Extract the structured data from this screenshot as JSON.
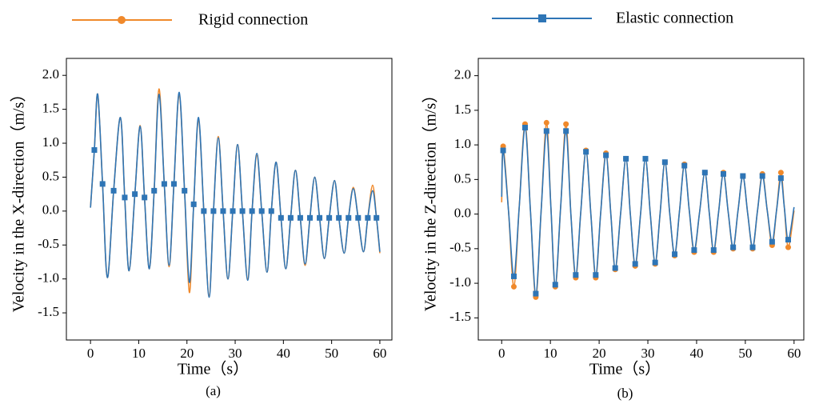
{
  "chart_data": [
    {
      "type": "line",
      "caption": "(a)",
      "xlabel": "Time（s）",
      "ylabel": "Velocity in the X-direction（m/s）",
      "xlim": [
        -5,
        62.5
      ],
      "ylim": [
        -1.9,
        2.25
      ],
      "xticks": [
        0,
        10,
        20,
        30,
        40,
        50,
        60
      ],
      "yticks": [
        {
          "value": -1.5,
          "label": "-1.5"
        },
        {
          "value": -1,
          "label": "-1.0"
        },
        -0.5,
        {
          "value": 0,
          "label": "0.0"
        },
        0.5,
        {
          "value": 1,
          "label": "1.0"
        },
        1.5,
        {
          "value": 2,
          "label": "2.0"
        }
      ],
      "x": [
        0,
        0.8,
        1.5,
        2.5,
        3.5,
        4.8,
        6.2,
        7.1,
        8.0,
        9.2,
        10.3,
        11.2,
        12.2,
        13.2,
        14.2,
        15.3,
        16.3,
        17.3,
        18.4,
        19.5,
        20.5,
        21.4,
        22.4,
        23.5,
        24.6,
        25.5,
        26.5,
        27.5,
        28.5,
        29.5,
        30.5,
        31.5,
        32.6,
        33.5,
        34.5,
        35.5,
        36.6,
        37.5,
        38.5,
        39.5,
        40.5,
        41.5,
        42.5,
        43.5,
        44.5,
        45.5,
        46.5,
        47.5,
        48.5,
        49.5,
        50.6,
        51.5,
        52.6,
        53.5,
        54.5,
        55.5,
        56.6,
        57.5,
        58.5,
        59.3,
        60
      ],
      "series": [
        {
          "name": "Rigid connection",
          "color": "#f0892b",
          "marker": "circle",
          "values": [
            0.05,
            0.9,
            1.72,
            0.4,
            -0.98,
            0.3,
            1.38,
            0.2,
            -0.88,
            0.25,
            1.26,
            0.2,
            -0.85,
            0.3,
            1.8,
            0.4,
            -0.82,
            0.4,
            1.72,
            0.3,
            -1.2,
            0.1,
            1.35,
            0.0,
            -1.25,
            0.0,
            1.1,
            0.0,
            -1.0,
            0.0,
            0.98,
            0.0,
            -1.0,
            0.0,
            0.82,
            0.0,
            -0.9,
            0.0,
            0.72,
            -0.1,
            -0.85,
            -0.1,
            0.6,
            -0.1,
            -0.8,
            -0.1,
            0.5,
            -0.1,
            -0.7,
            -0.1,
            0.45,
            -0.1,
            -0.62,
            -0.1,
            0.35,
            -0.1,
            -0.6,
            -0.1,
            0.38,
            -0.1,
            -0.62
          ]
        },
        {
          "name": "Elastic connection",
          "color": "#2e75b6",
          "marker": "square",
          "values": [
            0.05,
            0.9,
            1.72,
            0.4,
            -0.98,
            0.3,
            1.38,
            0.2,
            -0.88,
            0.25,
            1.25,
            0.2,
            -0.85,
            0.3,
            1.72,
            0.4,
            -0.8,
            0.4,
            1.75,
            0.3,
            -1.05,
            0.1,
            1.38,
            0.0,
            -1.27,
            0.0,
            1.08,
            0.0,
            -1.0,
            0.0,
            0.98,
            0.0,
            -1.02,
            0.0,
            0.85,
            0.0,
            -0.9,
            0.0,
            0.72,
            -0.1,
            -0.85,
            -0.1,
            0.6,
            -0.1,
            -0.78,
            -0.1,
            0.5,
            -0.1,
            -0.7,
            -0.1,
            0.45,
            -0.1,
            -0.62,
            -0.1,
            0.33,
            -0.1,
            -0.6,
            -0.1,
            0.3,
            -0.1,
            -0.6
          ]
        }
      ]
    },
    {
      "type": "line",
      "caption": "(b)",
      "xlabel": "Time（s）",
      "ylabel": "Velocity in the Z-direction（m/s）",
      "xlim": [
        -4.8,
        62
      ],
      "ylim": [
        -1.82,
        2.25
      ],
      "xticks": [
        0,
        10,
        20,
        30,
        40,
        50,
        60
      ],
      "yticks": [
        {
          "value": -1.5,
          "label": "-1.5"
        },
        {
          "value": -1,
          "label": "-1.0"
        },
        -0.5,
        {
          "value": 0,
          "label": "0.0"
        },
        0.5,
        {
          "value": 1,
          "label": "1.0"
        },
        1.5,
        {
          "value": 2,
          "label": "2.0"
        }
      ],
      "x": [
        0,
        0.3,
        1.4,
        2.5,
        3.6,
        4.8,
        5.9,
        7.0,
        8.1,
        9.2,
        10.1,
        11.0,
        12.1,
        13.2,
        14.2,
        15.2,
        16.2,
        17.3,
        18.3,
        19.3,
        20.3,
        21.4,
        22.4,
        23.3,
        24.4,
        25.5,
        26.4,
        27.4,
        28.5,
        29.5,
        30.5,
        31.5,
        32.5,
        33.5,
        34.5,
        35.5,
        36.5,
        37.5,
        38.5,
        39.5,
        40.6,
        41.7,
        42.6,
        43.5,
        44.5,
        45.5,
        46.5,
        47.5,
        48.5,
        49.5,
        50.5,
        51.5,
        52.5,
        53.5,
        54.5,
        55.5,
        56.4,
        57.3,
        58.0,
        58.8,
        60
      ],
      "series": [
        {
          "name": "Rigid connection",
          "color": "#f0892b",
          "marker": "circle",
          "values": [
            0.17,
            0.98,
            0.05,
            -1.05,
            0.1,
            1.3,
            0.05,
            -1.2,
            0.05,
            1.32,
            0.1,
            -1.05,
            0.1,
            1.3,
            0.0,
            -0.92,
            0.0,
            0.92,
            0.0,
            -0.92,
            0.0,
            0.88,
            0.0,
            -0.8,
            0.0,
            0.8,
            0.0,
            -0.75,
            0.0,
            0.8,
            0.0,
            -0.72,
            0.0,
            0.75,
            0.0,
            -0.6,
            0.05,
            0.72,
            0.05,
            -0.55,
            0.02,
            0.6,
            0.02,
            -0.55,
            0.02,
            0.6,
            0.02,
            -0.5,
            0.05,
            0.55,
            0.0,
            -0.5,
            0.05,
            0.58,
            0.05,
            -0.45,
            0.05,
            0.6,
            0.1,
            -0.48,
            0.05
          ]
        },
        {
          "name": "Elastic connection",
          "color": "#2e75b6",
          "marker": "square",
          "values": [
            0.25,
            0.92,
            0.05,
            -0.9,
            0.1,
            1.25,
            0.05,
            -1.15,
            0.05,
            1.2,
            0.1,
            -1.02,
            0.1,
            1.2,
            0.0,
            -0.88,
            0.0,
            0.9,
            0.0,
            -0.88,
            0.0,
            0.85,
            0.0,
            -0.78,
            0.0,
            0.8,
            0.0,
            -0.72,
            0.0,
            0.8,
            0.0,
            -0.7,
            0.0,
            0.75,
            0.0,
            -0.58,
            0.05,
            0.7,
            0.05,
            -0.52,
            0.02,
            0.6,
            0.02,
            -0.52,
            0.02,
            0.58,
            0.02,
            -0.48,
            0.05,
            0.55,
            0.0,
            -0.48,
            0.05,
            0.55,
            0.05,
            -0.4,
            0.05,
            0.52,
            0.1,
            -0.37,
            0.1
          ]
        }
      ]
    }
  ]
}
